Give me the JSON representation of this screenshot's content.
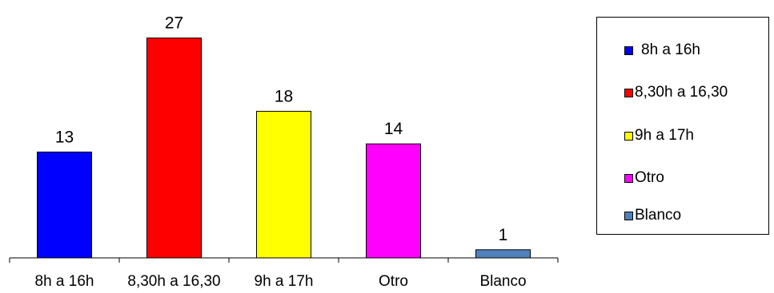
{
  "chart_data": {
    "type": "bar",
    "title": "",
    "xlabel": "",
    "ylabel": "",
    "categories": [
      "8h a 16h",
      "8,30h a 16,30",
      "9h a 17h",
      "Otro",
      "Blanco"
    ],
    "values": [
      13,
      27,
      18,
      14,
      1
    ],
    "colors": [
      "#0000ff",
      "#ff0000",
      "#ffff00",
      "#ff00ff",
      "#4f81bd"
    ],
    "ylim": [
      0,
      30
    ],
    "grid": false,
    "legend_position": "right",
    "legend": [
      {
        "label": "8h a 16h",
        "color": "#0000ff"
      },
      {
        "label": "8,30h a 16,30",
        "color": "#ff0000"
      },
      {
        "label": "9h a 17h",
        "color": "#ffff00"
      },
      {
        "label": "Otro",
        "color": "#ff00ff"
      },
      {
        "label": "Blanco",
        "color": "#4f81bd"
      }
    ]
  }
}
